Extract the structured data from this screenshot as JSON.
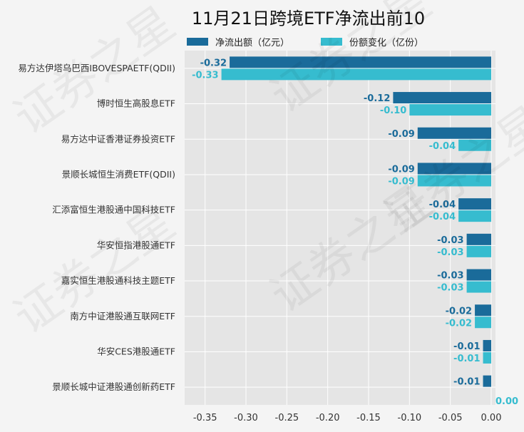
{
  "chart_data": {
    "type": "bar",
    "orientation": "horizontal",
    "title": "11月21日跨境ETF净流出前10",
    "categories": [
      "易方达伊塔乌巴西IBOVESPAETF(QDII)",
      "博时恒生高股息ETF",
      "易方达中证香港证券投资ETF",
      "景顺长城恒生消费ETF(QDII)",
      "汇添富恒生港股通中国科技ETF",
      "华安恒指港股通ETF",
      "嘉实恒生港股通科技主题ETF",
      "南方中证港股通互联网ETF",
      "华安CES港股通ETF",
      "景顺长城中证港股通创新药ETF"
    ],
    "series": [
      {
        "name": "净流出额（亿元）",
        "color": "#1a6b9a",
        "values": [
          -0.32,
          -0.12,
          -0.09,
          -0.09,
          -0.04,
          -0.03,
          -0.03,
          -0.02,
          -0.01,
          -0.01
        ],
        "labels": [
          "-0.32",
          "-0.12",
          "-0.09",
          "-0.09",
          "-0.04",
          "-0.03",
          "-0.03",
          "-0.02",
          "-0.01",
          "-0.01"
        ]
      },
      {
        "name": "份额变化（亿份）",
        "color": "#36bccf",
        "values": [
          -0.33,
          -0.1,
          -0.04,
          -0.09,
          -0.04,
          -0.03,
          -0.03,
          -0.02,
          -0.01,
          0.0
        ],
        "labels": [
          "-0.33",
          "-0.10",
          "-0.04",
          "-0.09",
          "-0.04",
          "-0.03",
          "-0.03",
          "-0.02",
          "-0.01",
          "0.00"
        ]
      }
    ],
    "xlim": [
      -0.375,
      0.0
    ],
    "xticks": [
      -0.35,
      -0.3,
      -0.25,
      -0.2,
      -0.15,
      -0.1,
      -0.05,
      0.0
    ],
    "xtick_labels": [
      "-0.35",
      "-0.30",
      "-0.25",
      "-0.20",
      "-0.15",
      "-0.10",
      "-0.05",
      "0.00"
    ],
    "grid": true,
    "legend_position": "top"
  },
  "watermark": "证券之星",
  "colors": {
    "plot_background": "#e5e5e5",
    "grid": "#ffffff"
  }
}
